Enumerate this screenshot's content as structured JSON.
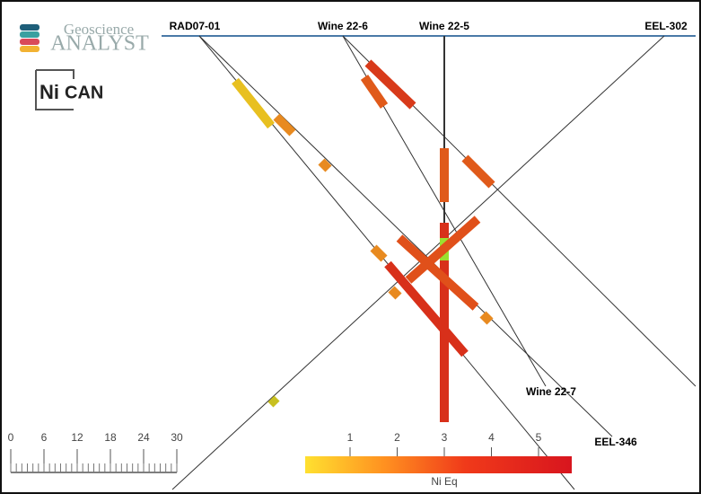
{
  "logo": {
    "top": "Geoscience",
    "bottom": "ANALYST"
  },
  "company": {
    "left": "Ni",
    "right": "CAN"
  },
  "drillholes": [
    "RAD07-01",
    "Wine 22-6",
    "Wine 22-5",
    "EEL-302",
    "Wine 22-7",
    "EEL-346"
  ],
  "scale_bar": {
    "ticks": [
      0,
      6,
      12,
      18,
      24,
      30
    ]
  },
  "color_bar": {
    "ticks": [
      1,
      2,
      3,
      4,
      5
    ],
    "label": "Ni Eq"
  }
}
